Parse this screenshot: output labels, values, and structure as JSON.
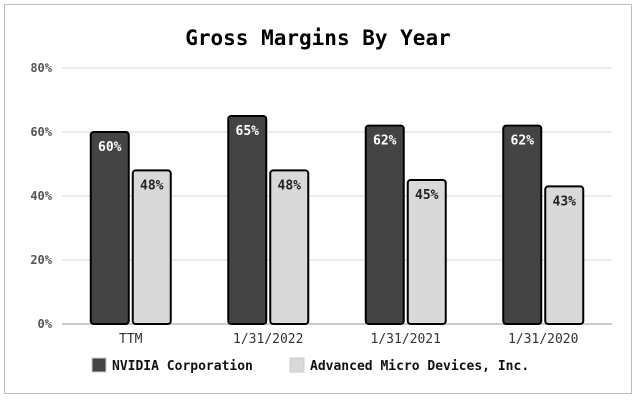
{
  "chart_data": {
    "type": "bar",
    "title": "Gross Margins By Year",
    "xlabel": "",
    "ylabel": "",
    "categories": [
      "TTM",
      "1/31/2022",
      "1/31/2021",
      "1/31/2020"
    ],
    "series": [
      {
        "name": "NVIDIA Corporation",
        "values": [
          60,
          65,
          62,
          62
        ],
        "labels": [
          "60%",
          "65%",
          "62%",
          "62%"
        ],
        "color": "#444444",
        "label_color": "#ffffff"
      },
      {
        "name": "Advanced Micro Devices, Inc.",
        "values": [
          48,
          48,
          45,
          43
        ],
        "labels": [
          "48%",
          "48%",
          "45%",
          "43%"
        ],
        "color": "#d9d9d9",
        "label_color": "#222222"
      }
    ],
    "ylim": [
      0,
      80
    ],
    "yticks": [
      0,
      20,
      40,
      60,
      80
    ],
    "ytick_labels": [
      "0%",
      "20%",
      "40%",
      "60%",
      "80%"
    ],
    "grid": true,
    "legend_position": "bottom"
  }
}
